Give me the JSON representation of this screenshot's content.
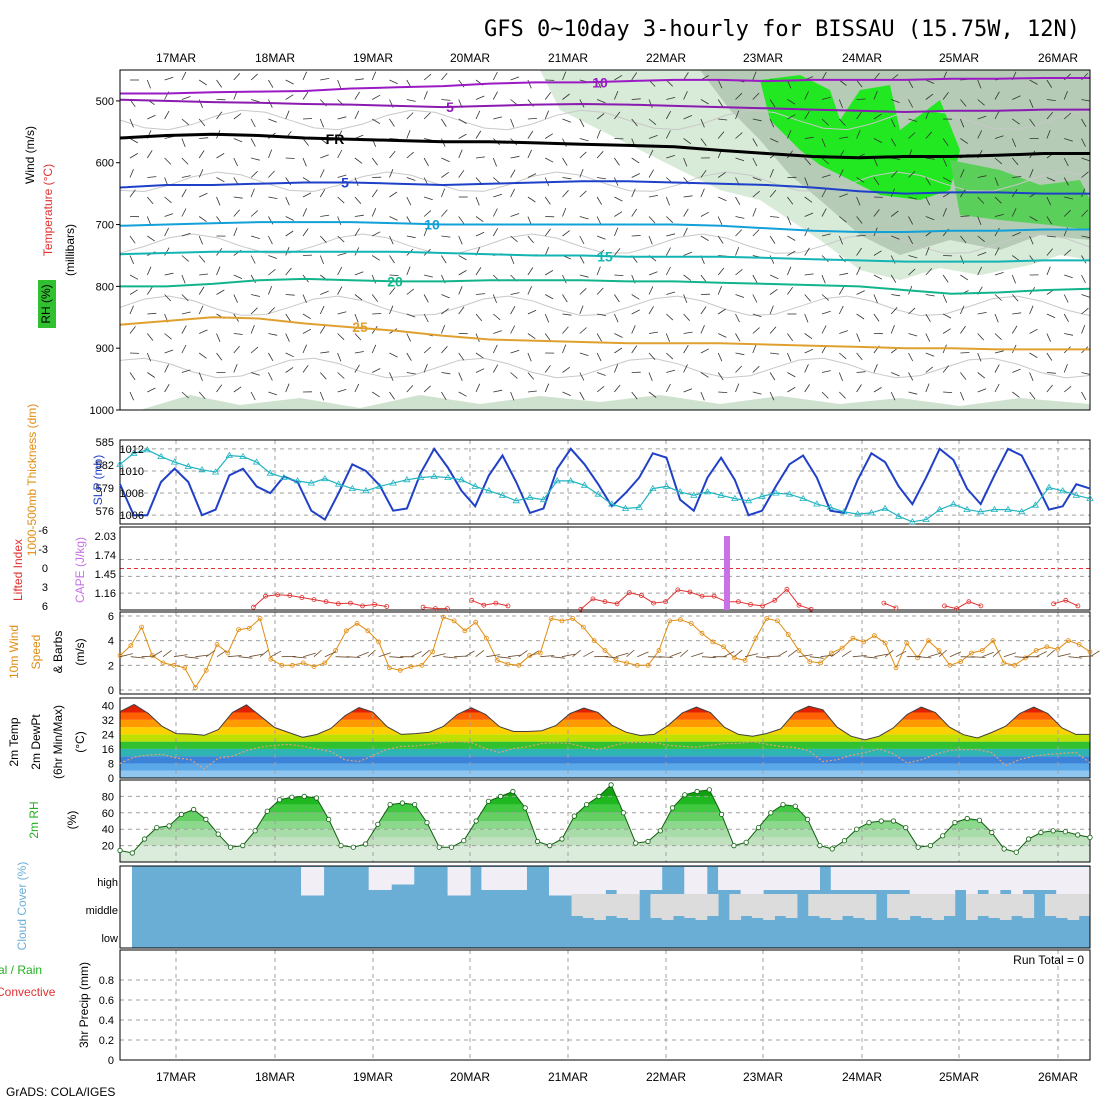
{
  "title": "GFS 0~10day 3-hourly for BISSAU (15.75W, 12N)",
  "credit": "GrADS: COLA/IGES",
  "colors": {
    "cape": "#c872e6",
    "li": "#e03030",
    "slp": "#2040c8",
    "thick": "#20b4c0",
    "wind": "#e08c10",
    "rh_green": "#30c030",
    "cloud": "#6aaed6",
    "temp5": "#7b1fa2",
    "temp10": "#7b1fa2",
    "temp_5": "#1e40c8",
    "temp_10": "#12a0d8",
    "temp_15": "#12b4b4",
    "temp_20": "#12b48c",
    "temp_25": "#e0a030"
  },
  "chart_data": [
    {
      "type": "line",
      "panel": "upper-air",
      "x_labels": [
        "17MAR",
        "18MAR",
        "19MAR",
        "20MAR",
        "21MAR",
        "22MAR",
        "23MAR",
        "24MAR",
        "25MAR",
        "26MAR"
      ],
      "ylabel": "(millibars)",
      "legend": [
        "Wind (m/s)",
        "Temperature (°C)",
        "RH (%)"
      ],
      "y_ticks": [
        "500",
        "600",
        "700",
        "800",
        "900",
        "1000"
      ],
      "ylim": [
        450,
        1000
      ],
      "isotherms": [
        {
          "name": "10",
          "color": "#9a1bc4",
          "levels": [
            488,
            488,
            486,
            485,
            484,
            480,
            478,
            476,
            472,
            470,
            470,
            468,
            466,
            466,
            468,
            466,
            466,
            466,
            464,
            464,
            463,
            463
          ]
        },
        {
          "name": "5",
          "color": "#8a1bb0",
          "levels": [
            498,
            500,
            502,
            503,
            505,
            506,
            508,
            510,
            508,
            506,
            505,
            506,
            508,
            510,
            512,
            514,
            516,
            518,
            516,
            516,
            514,
            514
          ]
        },
        {
          "name": "FR",
          "color": "#000000",
          "levels": [
            560,
            556,
            554,
            556,
            560,
            562,
            564,
            566,
            566,
            568,
            570,
            572,
            574,
            580,
            585,
            590,
            592,
            590,
            590,
            588,
            585,
            585
          ]
        },
        {
          "name": "5",
          "color": "#1e40c8",
          "levels": [
            640,
            636,
            636,
            634,
            632,
            632,
            634,
            636,
            634,
            632,
            630,
            630,
            632,
            634,
            636,
            640,
            646,
            650,
            648,
            648,
            650,
            650
          ]
        },
        {
          "name": "10",
          "color": "#12a0d8",
          "levels": [
            702,
            700,
            698,
            696,
            696,
            696,
            698,
            700,
            700,
            700,
            700,
            700,
            700,
            702,
            706,
            710,
            712,
            712,
            710,
            710,
            708,
            708
          ]
        },
        {
          "name": "15",
          "color": "#12b4b4",
          "levels": [
            748,
            746,
            744,
            744,
            744,
            744,
            744,
            746,
            748,
            750,
            750,
            752,
            752,
            752,
            754,
            756,
            758,
            760,
            760,
            760,
            758,
            758
          ]
        },
        {
          "name": "20",
          "color": "#12b48c",
          "levels": [
            800,
            800,
            796,
            790,
            788,
            790,
            792,
            792,
            790,
            790,
            790,
            792,
            792,
            794,
            796,
            798,
            800,
            806,
            812,
            810,
            806,
            804
          ]
        },
        {
          "name": "25",
          "color": "#e0a030",
          "levels": [
            862,
            856,
            850,
            852,
            860,
            866,
            872,
            880,
            886,
            888,
            890,
            892,
            892,
            892,
            894,
            896,
            898,
            900,
            900,
            902,
            902,
            902
          ]
        }
      ]
    },
    {
      "type": "line",
      "panel": "slp-thickness",
      "left_ylabel": "1000-500mb Thickness (dm)",
      "right_ylabel": "SLP (mb)",
      "left_ticks": [
        "585",
        "582",
        "579",
        "576"
      ],
      "right_ticks": [
        "1012",
        "1010",
        "1008",
        "1006"
      ],
      "slp_ylim": [
        1005.2,
        1012.8
      ],
      "series": [
        {
          "name": "SLP",
          "color": "#2040c8",
          "values": [
            1008.8,
            1006.0,
            1006.0,
            1009.0,
            1010.2,
            1009.0,
            1006.0,
            1006.5,
            1009.6,
            1010.2,
            1008.6,
            1008.0,
            1009.5,
            1009.0,
            1006.4,
            1005.6,
            1008.0,
            1010.6,
            1010.0,
            1008.7,
            1006.4,
            1006.6,
            1009.8,
            1012.0,
            1010.3,
            1008.2,
            1006.8,
            1009.6,
            1011.4,
            1009.0,
            1006.2,
            1006.6,
            1010.2,
            1012.0,
            1010.6,
            1008.8,
            1006.8,
            1008.0,
            1009.4,
            1011.6,
            1011.2,
            1007.4,
            1006.4,
            1009.4,
            1011.2,
            1009.2,
            1006.0,
            1006.4,
            1008.6,
            1010.6,
            1011.4,
            1009.4,
            1006.4,
            1006.2,
            1009.2,
            1011.6,
            1010.8,
            1008.6,
            1007.0,
            1009.4,
            1012.0,
            1011.0,
            1008.4,
            1007.0,
            1009.6,
            1012.0,
            1011.4,
            1009.0,
            1006.5,
            1006.8,
            1008.8,
            1008.4
          ]
        },
        {
          "name": "Thickness",
          "color": "#20b4c0",
          "values": [
            1010.6,
            1011.6,
            1011.9,
            1011.3,
            1010.8,
            1010.4,
            1010.1,
            1009.9,
            1011.4,
            1011.3,
            1010.8,
            1009.8,
            1009.4,
            1009.1,
            1008.9,
            1009.3,
            1008.8,
            1008.4,
            1008.2,
            1008.6,
            1008.9,
            1009.2,
            1009.4,
            1009.5,
            1009.4,
            1009.2,
            1008.6,
            1008.2,
            1007.8,
            1007.3,
            1007.6,
            1007.4,
            1009.1,
            1009.1,
            1008.7,
            1007.9,
            1007.0,
            1006.6,
            1006.7,
            1008.4,
            1008.6,
            1008.1,
            1007.8,
            1008.1,
            1007.8,
            1007.5,
            1007.3,
            1007.7,
            1008.0,
            1007.9,
            1007.5,
            1007.0,
            1006.7,
            1006.3,
            1006.1,
            1006.2,
            1006.6,
            1005.9,
            1005.4,
            1005.6,
            1006.5,
            1007.0,
            1006.5,
            1006.3,
            1006.5,
            1006.5,
            1006.3,
            1006.9,
            1008.5,
            1008.2,
            1007.8,
            1007.5
          ]
        }
      ]
    },
    {
      "type": "line",
      "panel": "cape-li",
      "left_ylabel": "Lifted Index",
      "right_ylabel": "CAPE (J/kg)",
      "left_ticks": [
        "-6",
        "-3",
        "0",
        "3",
        "6"
      ],
      "right_ticks": [
        "2.03",
        "1.74",
        "1.45",
        "1.16"
      ],
      "li_ylim": [
        -6,
        6
      ],
      "series": [
        {
          "name": "Lifted Index",
          "color": "#e03030",
          "values": [
            null,
            null,
            null,
            null,
            null,
            null,
            null,
            null,
            null,
            null,
            null,
            5.6,
            4.0,
            3.8,
            3.9,
            4.2,
            4.5,
            4.8,
            5.1,
            5.0,
            5.4,
            5.2,
            5.5,
            null,
            null,
            5.6,
            5.8,
            5.8,
            null,
            4.6,
            5.3,
            5.0,
            5.4,
            null,
            null,
            null,
            null,
            null,
            5.9,
            4.4,
            4.8,
            5.1,
            3.5,
            3.9,
            5.0,
            4.8,
            3.1,
            3.4,
            4.0,
            4.0,
            4.8,
            4.8,
            5.2,
            5.4,
            4.6,
            3.0,
            5.3,
            5.9,
            null,
            null,
            null,
            null,
            null,
            5.0,
            5.7,
            null,
            null,
            null,
            5.4,
            5.8,
            4.8,
            5.4,
            null,
            null,
            null,
            null,
            null,
            5.1,
            4.6,
            5.4,
            null
          ]
        },
        {
          "name": "CAPE",
          "color": "#c872e6",
          "values": [
            2.06
          ]
        }
      ]
    },
    {
      "type": "line",
      "panel": "wind10m",
      "ylabel": "10m Wind Speed (m/s) & Barbs",
      "y_ticks": [
        "6",
        "4",
        "2",
        "0"
      ],
      "ylim": [
        0,
        6
      ],
      "series": [
        {
          "name": "10m Wind Speed",
          "color": "#e08c10",
          "values": [
            2.8,
            3.6,
            5.1,
            2.8,
            2.2,
            2.0,
            1.8,
            0.2,
            1.6,
            3.7,
            3.0,
            4.9,
            5.0,
            5.8,
            2.5,
            2.0,
            2.0,
            2.2,
            1.9,
            2.2,
            3.2,
            4.8,
            5.4,
            4.8,
            3.9,
            1.8,
            1.6,
            1.9,
            2.0,
            3.1,
            5.9,
            5.6,
            4.8,
            5.5,
            4.2,
            2.4,
            2.1,
            2.0,
            2.8,
            3.0,
            5.8,
            5.6,
            5.8,
            5.1,
            4.0,
            3.2,
            2.4,
            2.2,
            2.0,
            2.0,
            3.2,
            5.6,
            5.7,
            5.4,
            4.6,
            3.9,
            3.5,
            2.6,
            2.4,
            4.2,
            5.8,
            5.6,
            4.5,
            3.2,
            2.3,
            2.2,
            3.0,
            3.4,
            4.2,
            3.9,
            4.4,
            3.8,
            1.8,
            3.8,
            2.6,
            4.0,
            3.2,
            2.0,
            2.3,
            3.0,
            3.2,
            4.0,
            2.2,
            2.0,
            2.6,
            3.2,
            3.5,
            3.3,
            4.0,
            3.7,
            3.1
          ]
        }
      ]
    },
    {
      "type": "area",
      "panel": "temp2m",
      "ylabel": "2m Temp 2m DewPt (6hr Min/Max) (°C)",
      "y_ticks": [
        "40",
        "32",
        "24",
        "16",
        "8",
        "0"
      ],
      "ylim": [
        0,
        44
      ],
      "series": [
        {
          "name": "2m Temp",
          "color": "#404040",
          "values": [
            36.5,
            40.5,
            35.6,
            28.3,
            24.4,
            24.2,
            23.5,
            26.6,
            36.1,
            40.2,
            34.0,
            27.8,
            25.0,
            22.4,
            23.9,
            27.2,
            34.2,
            38.8,
            36.2,
            28.2,
            24.0,
            24.4,
            25.2,
            28.4,
            35.0,
            38.6,
            35.0,
            28.2,
            25.6,
            25.6,
            26.0,
            28.8,
            35.4,
            38.5,
            36.0,
            29.0,
            25.2,
            23.4,
            24.0,
            29.0,
            35.8,
            39.0,
            36.0,
            27.9,
            24.0,
            23.0,
            24.5,
            27.0,
            36.0,
            39.5,
            37.5,
            28.0,
            23.0,
            21.0,
            23.0,
            27.5,
            35.0,
            39.0,
            36.0,
            28.0,
            23.8,
            22.0,
            25.0,
            28.5,
            35.5,
            39.0,
            35.5,
            27.6,
            24.0,
            24.0
          ]
        },
        {
          "name": "2m DewPt",
          "color": "#404040",
          "values": [
            8.0,
            11.5,
            12.6,
            13.0,
            11.0,
            10.2,
            5.0,
            11.0,
            12.0,
            15.0,
            17.0,
            18.0,
            18.5,
            17.5,
            16.0,
            14.5,
            10.0,
            9.0,
            12.4,
            15.8,
            17.4,
            17.6,
            18.6,
            19.6,
            20.0,
            19.4,
            16.2,
            14.0,
            16.2,
            17.2,
            19.0,
            19.4,
            19.0,
            17.0,
            15.6,
            17.6,
            19.4,
            19.6,
            19.5,
            18.0,
            17.4,
            17.0,
            18.0,
            19.0,
            19.0,
            20.0,
            18.6,
            17.4,
            16.8,
            15.0,
            9.0,
            10.0,
            12.5,
            14.0,
            16.0,
            13.4,
            8.2,
            10.0,
            13.0,
            15.2,
            15.6,
            15.6,
            14.0,
            6.8,
            10.2,
            12.0,
            13.0,
            13.6,
            14.0,
            8.4
          ]
        }
      ]
    },
    {
      "type": "area",
      "panel": "rh2m",
      "ylabel": "2m RH (%)",
      "y_ticks": [
        "80",
        "60",
        "40",
        "20"
      ],
      "ylim": [
        0,
        100
      ],
      "series": [
        {
          "name": "2m RH",
          "color": "#20b020",
          "values": [
            14,
            11,
            28,
            42,
            44,
            58,
            64,
            52,
            34,
            18,
            20,
            38,
            62,
            76,
            79,
            80,
            78,
            52,
            20,
            18,
            22,
            46,
            70,
            72,
            70,
            48,
            18,
            18,
            26,
            50,
            74,
            80,
            86,
            66,
            25,
            20,
            28,
            56,
            70,
            80,
            94,
            60,
            23,
            25,
            38,
            66,
            82,
            86,
            88,
            58,
            20,
            24,
            42,
            60,
            70,
            68,
            52,
            20,
            16,
            26,
            40,
            48,
            50,
            50,
            42,
            18,
            20,
            32,
            48,
            53,
            51,
            36,
            16,
            12,
            28,
            36,
            38,
            37,
            33,
            30
          ]
        }
      ]
    },
    {
      "type": "table",
      "panel": "cloud-cover",
      "ylabel": "Cloud Cover (%)",
      "rows": [
        "high",
        "middle",
        "low"
      ],
      "high": [
        90,
        90,
        90,
        90,
        90,
        90,
        90,
        90,
        90,
        90,
        90,
        90,
        90,
        90,
        90,
        75,
        75,
        90,
        90,
        90,
        90,
        80,
        80,
        85,
        85,
        90,
        90,
        90,
        75,
        75,
        90,
        80,
        80,
        80,
        80,
        90,
        90,
        75,
        75,
        75,
        75,
        75,
        80,
        75,
        75,
        80,
        80,
        90,
        90,
        75,
        75,
        90,
        80,
        80,
        75,
        75,
        80,
        80,
        80,
        80,
        80,
        90,
        80,
        80,
        80,
        80,
        80,
        80,
        80,
        75,
        75,
        75,
        75,
        80,
        75,
        80,
        75,
        80,
        75,
        80,
        80,
        80,
        75,
        75,
        75
      ],
      "middle": [
        58,
        58,
        58,
        58,
        58,
        58,
        58,
        58,
        58,
        58,
        58,
        58,
        58,
        58,
        58,
        58,
        58,
        58,
        58,
        58,
        58,
        58,
        58,
        58,
        58,
        58,
        58,
        58,
        58,
        58,
        58,
        58,
        58,
        58,
        58,
        58,
        58,
        58,
        58,
        58,
        58,
        58,
        58,
        58,
        58,
        58,
        58,
        58,
        58,
        58,
        58,
        58,
        58,
        58,
        58,
        58,
        58,
        58,
        58,
        58,
        58,
        58,
        58,
        58,
        58,
        58,
        58,
        58,
        58,
        58,
        58,
        58,
        58,
        58,
        58,
        58,
        58,
        58,
        58,
        58,
        58,
        58,
        58,
        58,
        58
      ]
    },
    {
      "type": "line",
      "panel": "precip",
      "ylabel": "3hr Precip (mm)",
      "legend": [
        "Total / Rain",
        "Convective"
      ],
      "y_ticks": [
        "0.8",
        "0.6",
        "0.4",
        "0.2",
        "0"
      ],
      "ylim": [
        0,
        1
      ],
      "run_total": "Run Total = 0",
      "values": []
    }
  ]
}
